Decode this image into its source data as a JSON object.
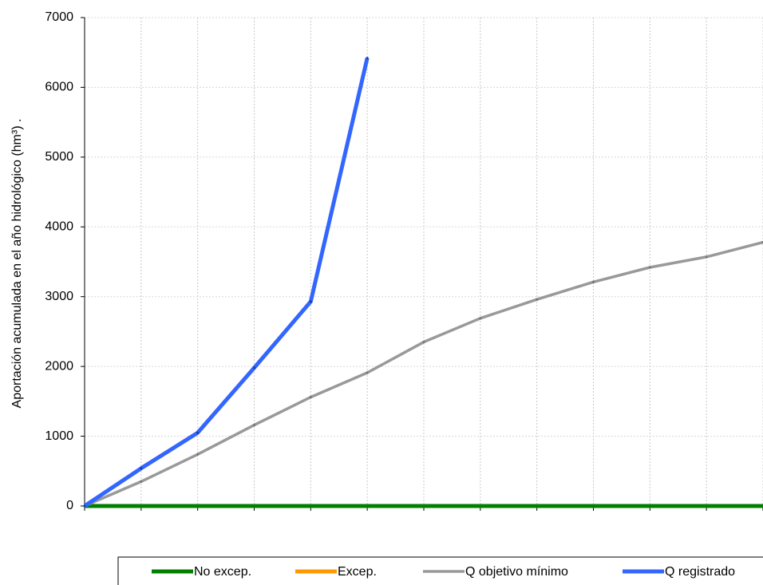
{
  "chart_data": {
    "type": "line",
    "y_label": "Aportación acumulada en el año hidrológico (hm³)   .",
    "categories": [
      null,
      null,
      null,
      null,
      null,
      null,
      null,
      null,
      null,
      null,
      null,
      null,
      null
    ],
    "series": [
      {
        "name": "Excep.",
        "color": "#ff9900",
        "values": [
          0,
          0,
          0,
          0,
          0,
          0,
          0,
          0,
          0,
          0,
          0,
          0,
          0
        ]
      },
      {
        "name": "No excep.",
        "color": "#008000",
        "values": [
          0,
          0,
          0,
          0,
          0,
          0,
          0,
          0,
          0,
          0,
          0,
          0,
          0
        ]
      },
      {
        "name": "Q objetivo mínimo",
        "color": "#999999",
        "values": [
          0,
          350,
          740,
          1160,
          1560,
          1910,
          2350,
          2690,
          2960,
          3210,
          3420,
          3570,
          3780
        ]
      },
      {
        "name": "Q registrado",
        "color": "#3366ff",
        "values": [
          0,
          540,
          1050,
          1980,
          2930,
          6420,
          null,
          null,
          null,
          null,
          null,
          null,
          null
        ]
      }
    ],
    "ylim": [
      0,
      7000
    ],
    "yticks": [
      0,
      1000,
      2000,
      3000,
      4000,
      5000,
      6000,
      7000
    ],
    "grid": true
  }
}
